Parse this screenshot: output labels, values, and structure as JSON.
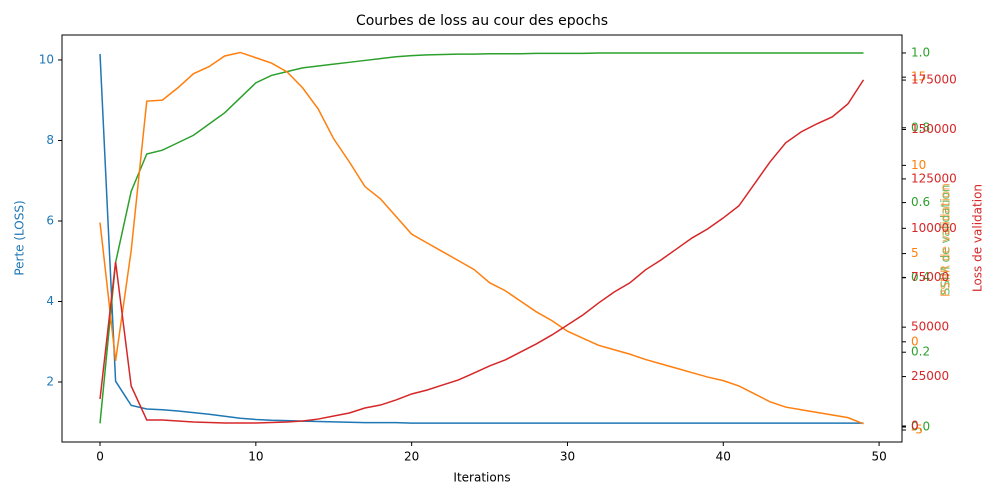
{
  "chart_data": {
    "type": "line",
    "title": "Courbes de loss au cour des epochs",
    "xlabel": "Iterations",
    "ylabel": "Perte (LOSS)",
    "y2label": "SSIM de validation",
    "y3label": "PSNR de validation",
    "y4label": "Loss de validation",
    "x": [
      0,
      1,
      2,
      3,
      4,
      5,
      6,
      7,
      8,
      9,
      10,
      11,
      12,
      13,
      14,
      15,
      16,
      17,
      18,
      19,
      20,
      21,
      22,
      23,
      24,
      25,
      26,
      27,
      28,
      29,
      30,
      31,
      32,
      33,
      34,
      35,
      36,
      37,
      38,
      39,
      40,
      41,
      42,
      43,
      44,
      45,
      46,
      47,
      48,
      49
    ],
    "xlim": [
      -2.44,
      51.47
    ],
    "xticks": [
      0,
      10,
      20,
      30,
      40,
      50
    ],
    "ylim": [
      0.51,
      10.62
    ],
    "yticks": [
      2,
      4,
      6,
      8,
      10
    ],
    "y2lim": [
      -0.04,
      1.048
    ],
    "y2ticks": [
      {
        "value": 0,
        "label": "0.0"
      },
      0.2,
      0.4,
      0.6,
      0.8,
      {
        "value": 1,
        "label": "1.0"
      }
    ],
    "y3lim": [
      -5.68,
      17.39
    ],
    "y3ticks": [
      -5,
      0,
      5,
      10,
      15
    ],
    "y4lim": [
      -8100,
      197800
    ],
    "y4ticks": [
      0,
      25000,
      50000,
      75000,
      100000,
      125000,
      150000,
      175000
    ],
    "series": [
      {
        "color": "#1f77b4",
        "axis": "y",
        "values": [
          10.15,
          2.02,
          1.42,
          1.33,
          1.31,
          1.28,
          1.24,
          1.2,
          1.15,
          1.1,
          1.07,
          1.05,
          1.04,
          1.03,
          1.02,
          1.01,
          1.0,
          0.99,
          0.99,
          0.99,
          0.98,
          0.98,
          0.98,
          0.98,
          0.98,
          0.98,
          0.98,
          0.98,
          0.98,
          0.98,
          0.98,
          0.98,
          0.98,
          0.98,
          0.98,
          0.98,
          0.98,
          0.98,
          0.98,
          0.98,
          0.98,
          0.98,
          0.98,
          0.98,
          0.98,
          0.98,
          0.98,
          0.98,
          0.98,
          0.98
        ]
      },
      {
        "color": "#2ca02c",
        "axis": "y2",
        "values": [
          0.01,
          0.44,
          0.63,
          0.73,
          0.74,
          0.76,
          0.78,
          0.81,
          0.84,
          0.88,
          0.92,
          0.94,
          0.95,
          0.96,
          0.965,
          0.97,
          0.975,
          0.98,
          0.985,
          0.99,
          0.993,
          0.995,
          0.996,
          0.997,
          0.997,
          0.998,
          0.998,
          0.998,
          0.999,
          0.999,
          0.999,
          0.999,
          1.0,
          1.0,
          1.0,
          1.0,
          1.0,
          1.0,
          1.0,
          1.0,
          1.0,
          1.0,
          1.0,
          1.0,
          1.0,
          1.0,
          1.0,
          1.0,
          1.0,
          1.0
        ]
      },
      {
        "color": "#ff7f0e",
        "axis": "y3",
        "values": [
          6.76,
          -1.08,
          5.17,
          13.64,
          13.7,
          14.4,
          15.2,
          15.6,
          16.2,
          16.4,
          16.1,
          15.8,
          15.3,
          14.4,
          13.2,
          11.5,
          10.2,
          8.8,
          8.1,
          7.1,
          6.1,
          5.6,
          5.1,
          4.6,
          4.1,
          3.35,
          2.9,
          2.3,
          1.7,
          1.2,
          0.6,
          0.2,
          -0.2,
          -0.45,
          -0.7,
          -1.0,
          -1.25,
          -1.5,
          -1.75,
          -2.0,
          -2.2,
          -2.5,
          -2.95,
          -3.4,
          -3.7,
          -3.85,
          -4.0,
          -4.15,
          -4.3,
          -4.65
        ]
      },
      {
        "color": "#d62728",
        "axis": "y4",
        "values": [
          13660,
          83000,
          20240,
          3040,
          3040,
          2530,
          2000,
          1770,
          1500,
          1500,
          1500,
          1770,
          2000,
          2500,
          3500,
          5060,
          6580,
          9100,
          10600,
          13160,
          16200,
          18200,
          20750,
          23280,
          26800,
          30360,
          33400,
          37450,
          41500,
          46050,
          51100,
          56200,
          62250,
          67800,
          72370,
          78950,
          84000,
          89570,
          95140,
          99700,
          105260,
          111340,
          122470,
          133600,
          143220,
          148800,
          152830,
          156380,
          162960,
          175100
        ]
      }
    ]
  }
}
